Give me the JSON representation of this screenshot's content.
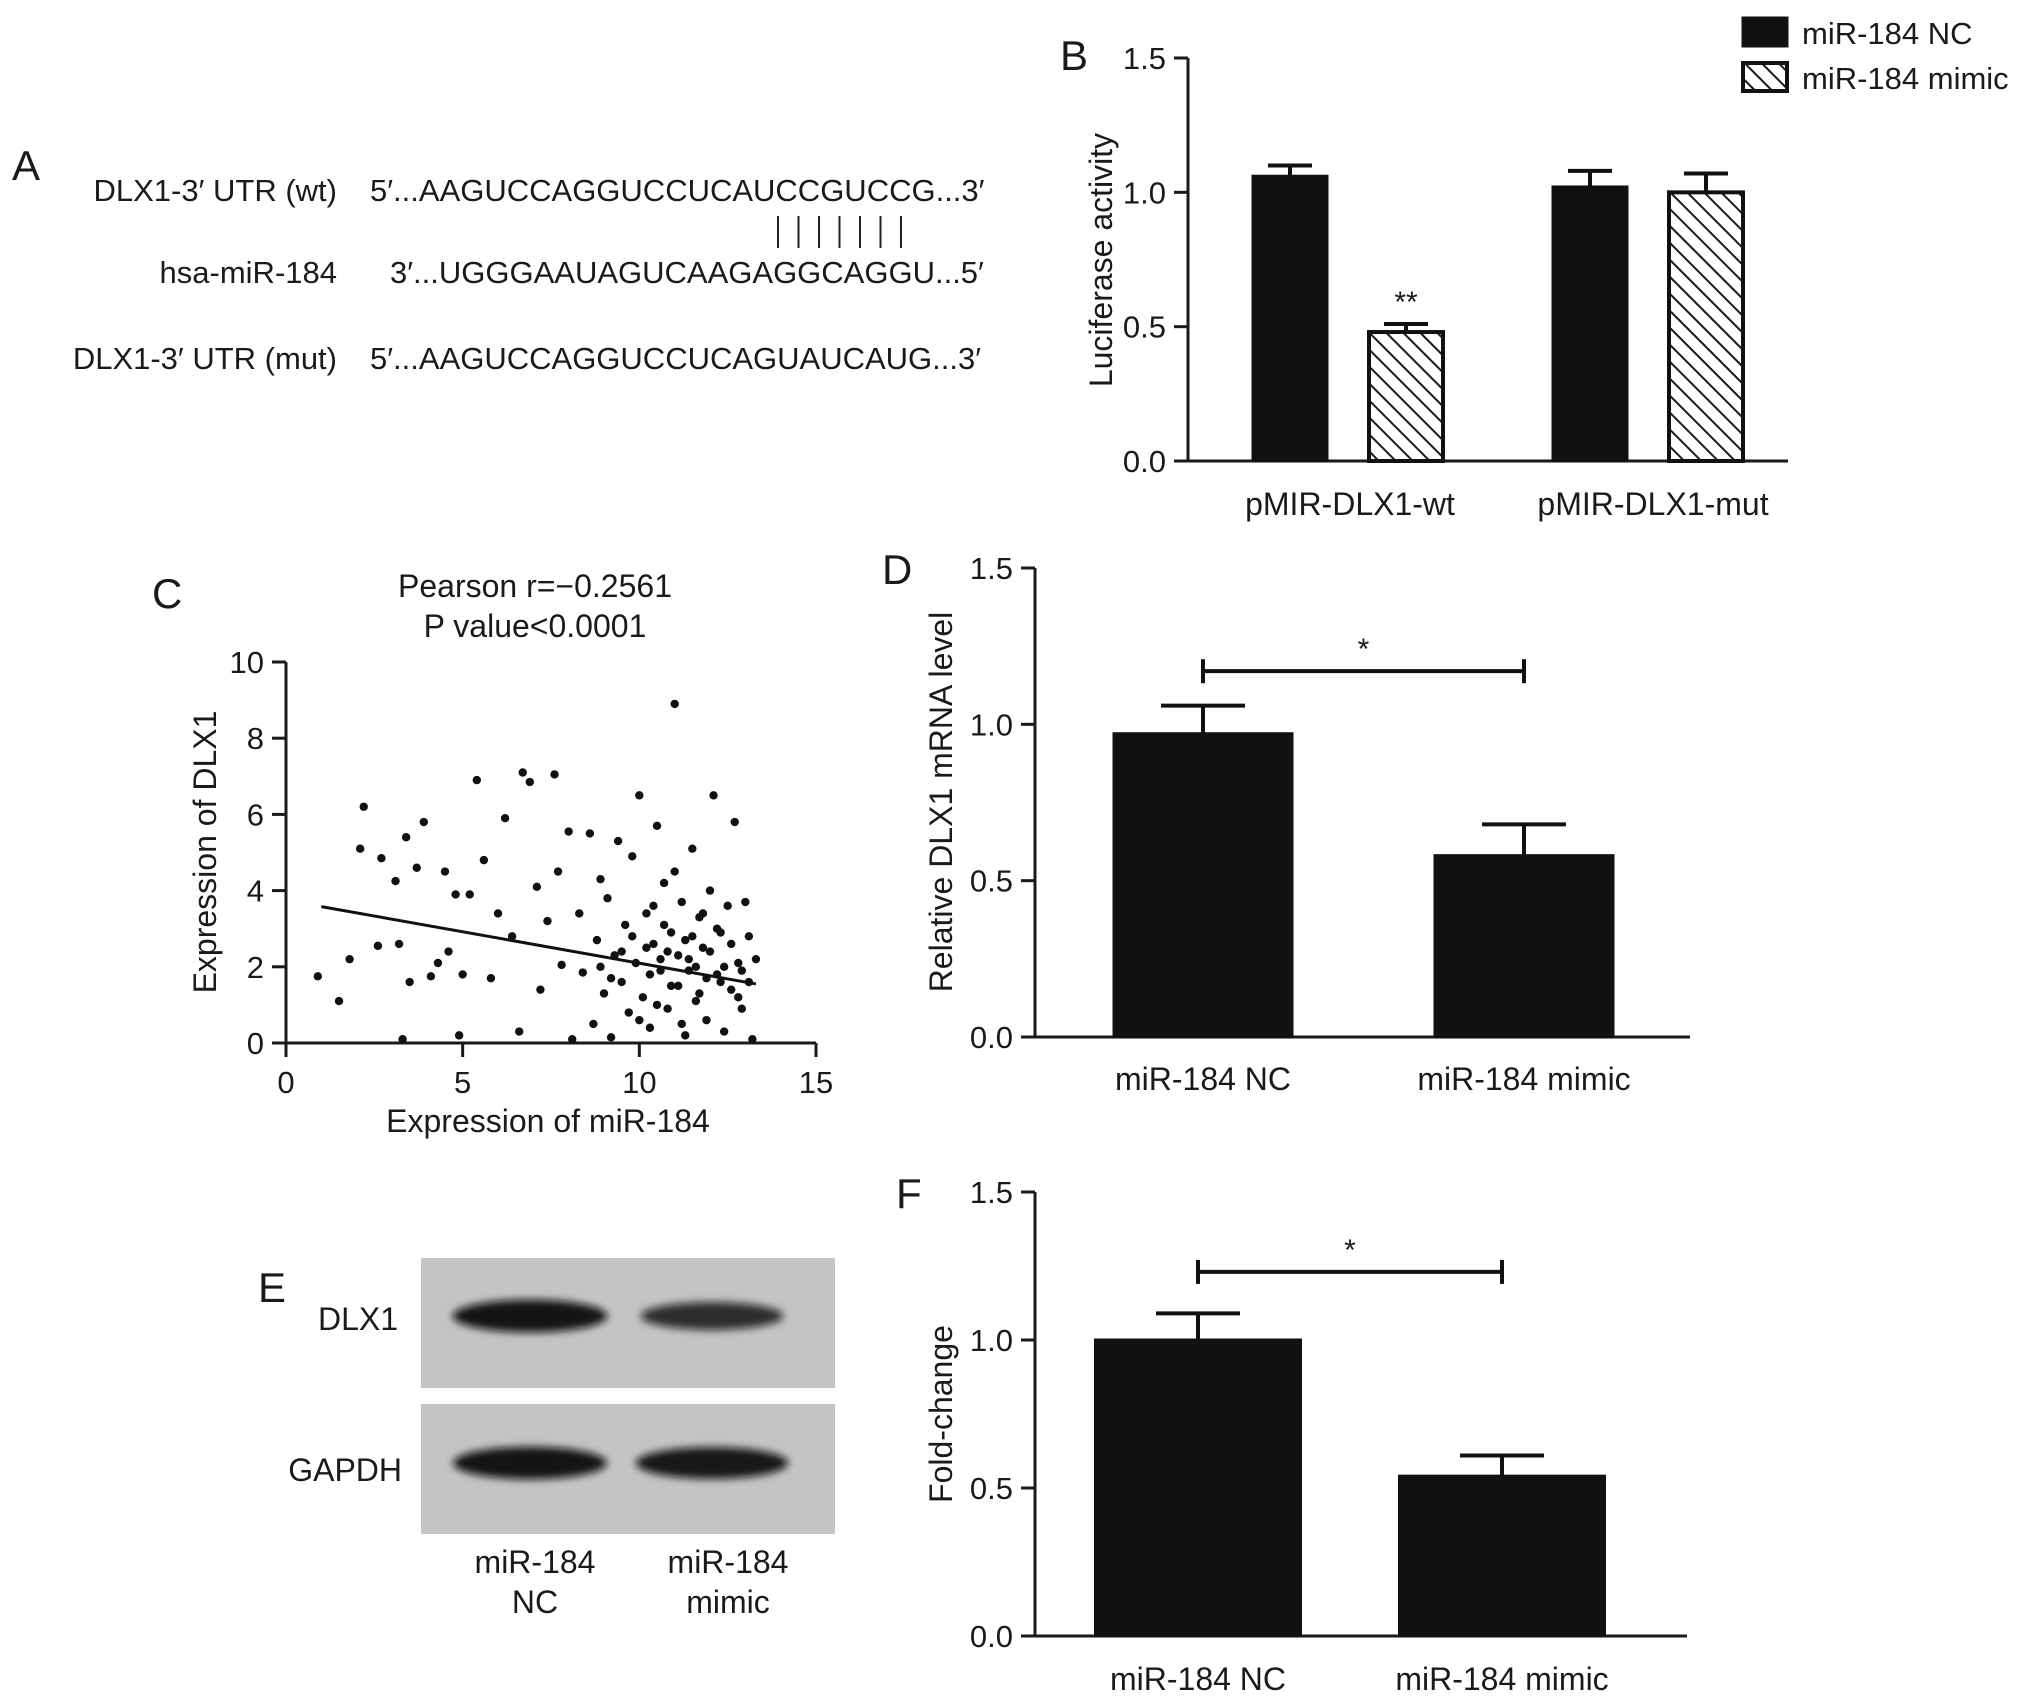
{
  "panel_letters": {
    "a": "A",
    "b": "B",
    "c": "C",
    "d": "D",
    "e": "E",
    "f": "F"
  },
  "panel_a": {
    "rows": [
      {
        "label": "DLX1-3′ UTR (wt)",
        "sequence": "5′...AAGUCCAGGUCCUCAUCCGUCCG...3′"
      },
      {
        "label": "hsa-miR-184",
        "sequence": "3′...UGGGAAUAGUCAAGAGGCAGGU...5′"
      },
      {
        "label": "DLX1-3′ UTR (mut)",
        "sequence": "5′...AAGUCCAGGUCCUCAGUAUCAUG...3′"
      }
    ],
    "pairing_lines": 7
  },
  "legend": {
    "items": [
      {
        "name": "miR-184 NC",
        "style": "solid"
      },
      {
        "name": "miR-184 mimic",
        "style": "hatched"
      }
    ]
  },
  "panel_e": {
    "bands": [
      {
        "label": "DLX1",
        "intensities": [
          0.92,
          0.62
        ]
      },
      {
        "label": "GAPDH",
        "intensities": [
          0.9,
          0.86
        ]
      }
    ],
    "lanes": [
      {
        "line1": "miR-184",
        "line2": "NC"
      },
      {
        "line1": "miR-184",
        "line2": "mimic"
      }
    ]
  },
  "chart_data": [
    {
      "id": "B",
      "type": "bar",
      "ylabel": "Luciferase activity",
      "categories": [
        "pMIR-DLX1-wt",
        "pMIR-DLX1-mut"
      ],
      "series": [
        {
          "name": "miR-184 NC",
          "values": [
            1.06,
            1.02
          ],
          "errors": [
            0.04,
            0.06
          ]
        },
        {
          "name": "miR-184 mimic",
          "values": [
            0.48,
            1.0
          ],
          "errors": [
            0.03,
            0.07
          ]
        }
      ],
      "ylim": [
        0,
        1.5
      ],
      "yticks": [
        "0.0",
        "0.5",
        "1.0",
        "1.5"
      ],
      "annotations": [
        {
          "category": 0,
          "series": 1,
          "text": "**"
        }
      ]
    },
    {
      "id": "C",
      "type": "scatter",
      "title_lines": [
        "Pearson r=−0.2561",
        "P value<0.0001"
      ],
      "xlabel": "Expression of miR-184",
      "ylabel": "Expression of DLX1",
      "xlim": [
        0,
        15
      ],
      "ylim": [
        0,
        10
      ],
      "xticks": [
        "0",
        "5",
        "10",
        "15"
      ],
      "yticks": [
        "0",
        "2",
        "4",
        "6",
        "8",
        "10"
      ],
      "regression": {
        "x": [
          1,
          13.3
        ],
        "y": [
          3.58,
          1.55
        ]
      },
      "points": [
        [
          0.9,
          1.75
        ],
        [
          1.5,
          1.1
        ],
        [
          1.8,
          2.2
        ],
        [
          2.1,
          5.1
        ],
        [
          2.2,
          6.2
        ],
        [
          2.6,
          2.55
        ],
        [
          2.7,
          4.85
        ],
        [
          3.1,
          4.25
        ],
        [
          3.2,
          2.6
        ],
        [
          3.3,
          0.1
        ],
        [
          3.4,
          5.4
        ],
        [
          3.5,
          1.6
        ],
        [
          3.7,
          4.6
        ],
        [
          3.9,
          5.8
        ],
        [
          4.1,
          1.75
        ],
        [
          4.3,
          2.1
        ],
        [
          4.5,
          4.5
        ],
        [
          4.6,
          2.4
        ],
        [
          4.8,
          3.9
        ],
        [
          4.9,
          0.2
        ],
        [
          5.0,
          1.8
        ],
        [
          5.2,
          3.9
        ],
        [
          5.4,
          6.9
        ],
        [
          5.6,
          4.8
        ],
        [
          5.8,
          1.7
        ],
        [
          6.0,
          3.4
        ],
        [
          6.2,
          5.9
        ],
        [
          6.4,
          2.8
        ],
        [
          6.6,
          0.3
        ],
        [
          6.7,
          7.1
        ],
        [
          6.9,
          6.85
        ],
        [
          7.1,
          4.1
        ],
        [
          7.2,
          1.4
        ],
        [
          7.4,
          3.2
        ],
        [
          7.6,
          7.05
        ],
        [
          7.7,
          4.5
        ],
        [
          7.8,
          2.05
        ],
        [
          8.0,
          5.55
        ],
        [
          8.1,
          0.1
        ],
        [
          8.3,
          3.4
        ],
        [
          8.4,
          1.85
        ],
        [
          8.6,
          5.5
        ],
        [
          8.7,
          0.5
        ],
        [
          8.8,
          2.7
        ],
        [
          8.9,
          4.3
        ],
        [
          9.0,
          1.3
        ],
        [
          9.1,
          3.8
        ],
        [
          9.2,
          0.15
        ],
        [
          9.3,
          2.3
        ],
        [
          9.4,
          5.3
        ],
        [
          9.5,
          1.6
        ],
        [
          9.6,
          3.1
        ],
        [
          9.7,
          0.8
        ],
        [
          9.8,
          4.9
        ],
        [
          9.9,
          2.1
        ],
        [
          10.0,
          6.5
        ],
        [
          10.1,
          1.2
        ],
        [
          10.2,
          3.4
        ],
        [
          10.3,
          0.4
        ],
        [
          10.4,
          2.6
        ],
        [
          10.5,
          5.7
        ],
        [
          10.6,
          1.9
        ],
        [
          10.7,
          4.2
        ],
        [
          10.8,
          0.9
        ],
        [
          10.9,
          2.9
        ],
        [
          11.0,
          8.9
        ],
        [
          11.1,
          1.5
        ],
        [
          11.2,
          3.7
        ],
        [
          11.3,
          0.2
        ],
        [
          11.4,
          2.2
        ],
        [
          11.5,
          5.1
        ],
        [
          11.6,
          1.1
        ],
        [
          11.7,
          3.3
        ],
        [
          11.8,
          2.5
        ],
        [
          11.9,
          0.6
        ],
        [
          12.0,
          4.0
        ],
        [
          12.1,
          6.5
        ],
        [
          12.2,
          1.8
        ],
        [
          12.3,
          2.9
        ],
        [
          12.4,
          0.3
        ],
        [
          12.5,
          3.6
        ],
        [
          12.6,
          1.4
        ],
        [
          12.7,
          5.8
        ],
        [
          12.8,
          2.1
        ],
        [
          12.9,
          0.9
        ],
        [
          13.0,
          3.7
        ],
        [
          13.1,
          1.6
        ],
        [
          13.2,
          0.1
        ],
        [
          13.3,
          2.2
        ],
        [
          11.3,
          2.7
        ],
        [
          10.8,
          2.4
        ],
        [
          11.6,
          2.0
        ],
        [
          10.3,
          1.8
        ],
        [
          11.9,
          1.7
        ],
        [
          10.6,
          2.2
        ],
        [
          11.1,
          2.3
        ],
        [
          12.3,
          1.6
        ],
        [
          10.9,
          1.5
        ],
        [
          11.4,
          1.9
        ],
        [
          10.2,
          2.5
        ],
        [
          12.0,
          2.4
        ],
        [
          11.7,
          1.3
        ],
        [
          10.5,
          1.0
        ],
        [
          12.6,
          2.6
        ],
        [
          11.2,
          0.5
        ],
        [
          9.8,
          2.8
        ],
        [
          12.8,
          1.2
        ],
        [
          10.0,
          0.6
        ],
        [
          11.5,
          2.8
        ],
        [
          12.2,
          3.0
        ],
        [
          9.5,
          2.4
        ],
        [
          13.1,
          2.8
        ],
        [
          10.7,
          3.1
        ],
        [
          11.8,
          3.4
        ],
        [
          8.9,
          2.0
        ],
        [
          12.4,
          2.0
        ],
        [
          9.2,
          1.7
        ],
        [
          10.4,
          3.6
        ],
        [
          11.0,
          4.5
        ],
        [
          12.9,
          1.9
        ]
      ]
    },
    {
      "id": "D",
      "type": "bar",
      "ylabel": "Relative DLX1 mRNA level",
      "categories": [
        "miR-184 NC",
        "miR-184 mimic"
      ],
      "values": [
        0.97,
        0.58
      ],
      "errors": [
        0.09,
        0.1
      ],
      "ylim": [
        0,
        1.5
      ],
      "yticks": [
        "0.0",
        "0.5",
        "1.0",
        "1.5"
      ],
      "significance": {
        "text": "*",
        "y": 1.17
      }
    },
    {
      "id": "F",
      "type": "bar",
      "ylabel": "Fold-change",
      "categories": [
        "miR-184 NC",
        "miR-184 mimic"
      ],
      "values": [
        1.0,
        0.54
      ],
      "errors": [
        0.09,
        0.07
      ],
      "ylim": [
        0,
        1.5
      ],
      "yticks": [
        "0.0",
        "0.5",
        "1.0",
        "1.5"
      ],
      "significance": {
        "text": "*",
        "y": 1.23
      }
    }
  ]
}
